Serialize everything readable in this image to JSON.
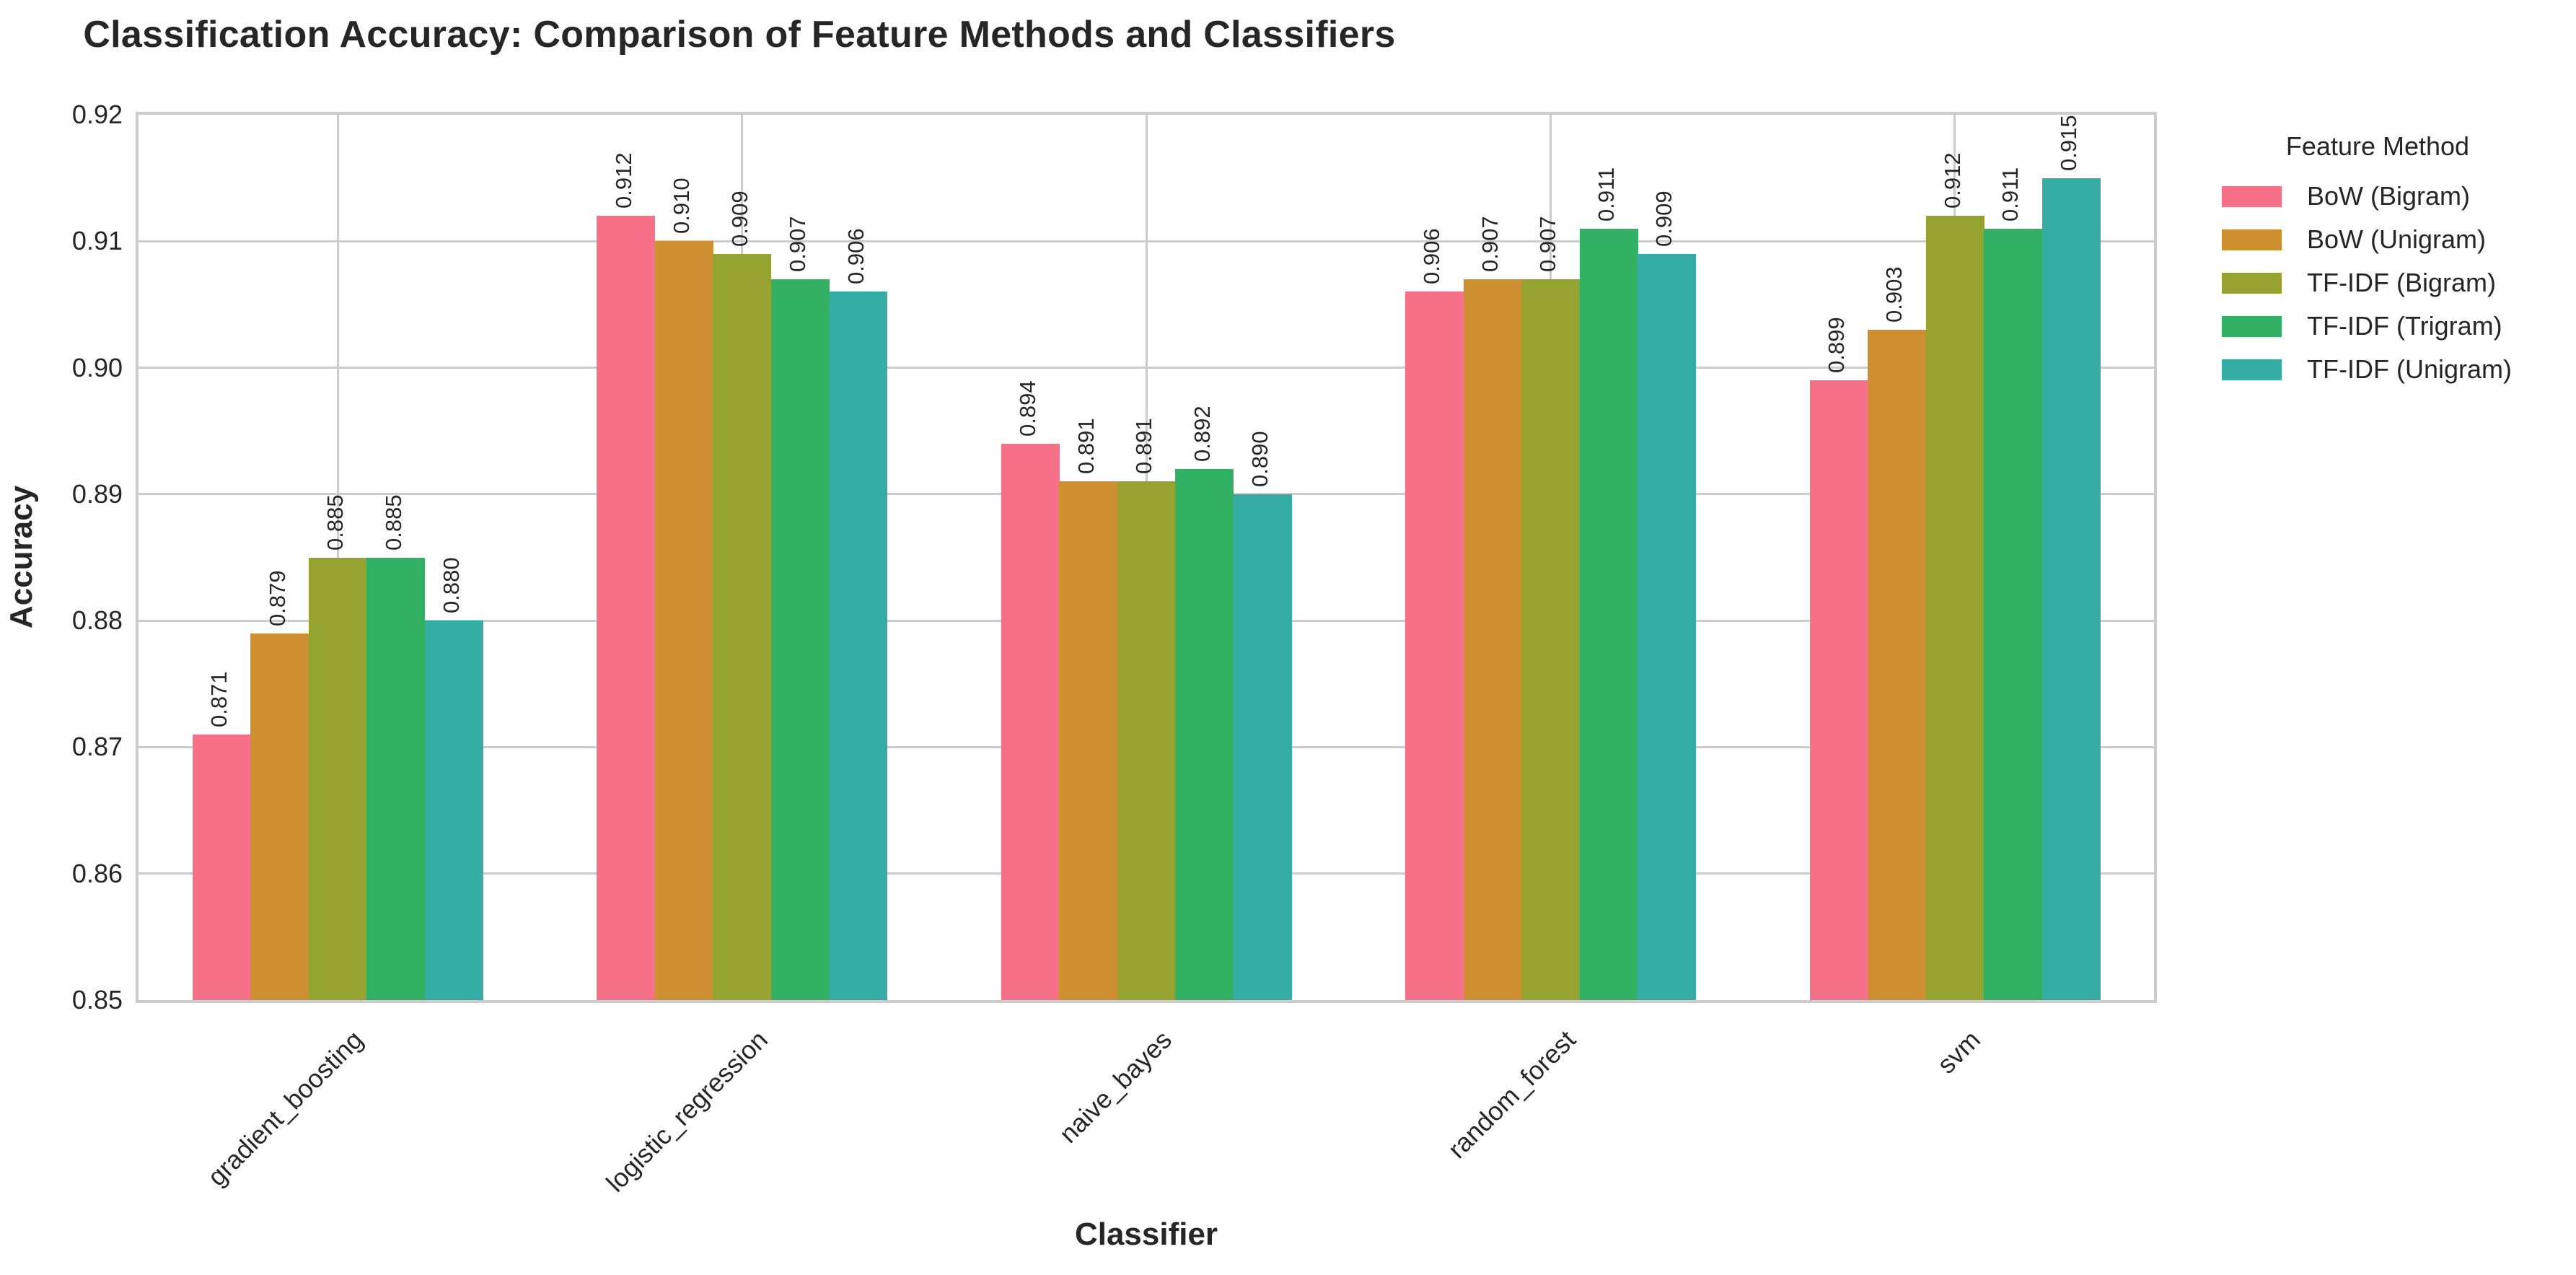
{
  "chart_data": {
    "type": "bar",
    "title": "Classification Accuracy: Comparison of Feature Methods and Classifiers",
    "xlabel": "Classifier",
    "ylabel": "Accuracy",
    "ylim": [
      0.85,
      0.92
    ],
    "yticks": [
      "0.85",
      "0.86",
      "0.87",
      "0.88",
      "0.89",
      "0.90",
      "0.91",
      "0.92"
    ],
    "grid": true,
    "legend_title": "Feature Method",
    "legend_position": "outside upper right",
    "categories": [
      "gradient_boosting",
      "logistic_regression",
      "naive_bayes",
      "random_forest",
      "svm"
    ],
    "series": [
      {
        "name": "BoW (Bigram)",
        "color": "#f67088",
        "values": [
          0.871,
          0.912,
          0.894,
          0.906,
          0.899
        ]
      },
      {
        "name": "BoW (Unigram)",
        "color": "#ce8f31",
        "values": [
          0.879,
          0.91,
          0.891,
          0.907,
          0.903
        ]
      },
      {
        "name": "TF-IDF (Bigram)",
        "color": "#96a331",
        "values": [
          0.885,
          0.909,
          0.891,
          0.907,
          0.912
        ]
      },
      {
        "name": "TF-IDF (Trigram)",
        "color": "#32b165",
        "values": [
          0.885,
          0.907,
          0.892,
          0.911,
          0.911
        ]
      },
      {
        "name": "TF-IDF (Unigram)",
        "color": "#36ada4",
        "values": [
          0.88,
          0.906,
          0.89,
          0.909,
          0.915
        ]
      }
    ],
    "value_labels": [
      [
        "0.871",
        "0.912",
        "0.894",
        "0.906",
        "0.899"
      ],
      [
        "0.879",
        "0.910",
        "0.891",
        "0.907",
        "0.903"
      ],
      [
        "0.885",
        "0.909",
        "0.891",
        "0.907",
        "0.912"
      ],
      [
        "0.885",
        "0.907",
        "0.892",
        "0.911",
        "0.911"
      ],
      [
        "0.880",
        "0.906",
        "0.890",
        "0.909",
        "0.915"
      ]
    ]
  }
}
